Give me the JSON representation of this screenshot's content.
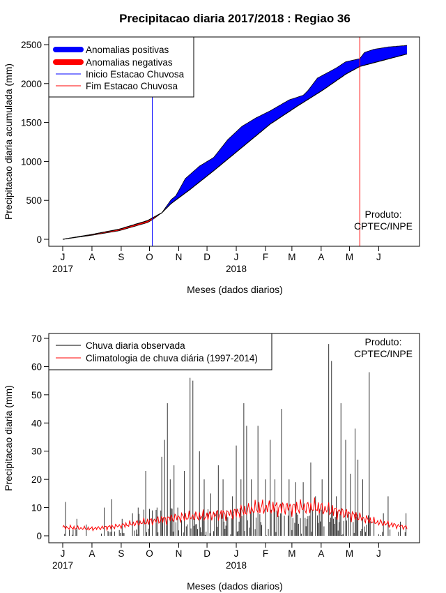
{
  "title": "Precipitacao diaria 2017/2018 : Regiao 36",
  "credit": [
    "Produto:",
    "CPTEC/INPE"
  ],
  "months": [
    "J",
    "A",
    "S",
    "O",
    "N",
    "D",
    "J",
    "F",
    "M",
    "A",
    "M",
    "J"
  ],
  "years": [
    "2017",
    "2018"
  ],
  "colors": {
    "positive": "#0000ff",
    "negative": "#ff0000",
    "onset": "#0000ff",
    "end": "#ff0000",
    "observed": "#000000",
    "climatology": "#ff0000"
  },
  "chart_data": [
    {
      "type": "area",
      "name": "accumulated",
      "title": "Precipitacao diaria 2017/2018 : Regiao 36",
      "xlabel": "Meses (dados diarios)",
      "ylabel": "Precipitacao diaria acumulada (mm)",
      "xlim": [
        0,
        365
      ],
      "ylim": [
        0,
        2500
      ],
      "yticks": [
        0,
        500,
        1000,
        1500,
        2000,
        2500
      ],
      "legend": {
        "position": "top-left",
        "entries": [
          "Anomalias positivas",
          "Anomalias negativas",
          "Inicio Estacao Chuvosa",
          "Fim Estacao Chuvosa"
        ]
      },
      "onset_day": 95,
      "end_day": 315,
      "climatology_x": [
        0,
        30,
        60,
        90,
        105,
        115,
        135,
        160,
        190,
        220,
        250,
        275,
        300,
        315,
        340,
        365
      ],
      "climatology_y": [
        0,
        60,
        130,
        240,
        340,
        460,
        640,
        880,
        1180,
        1480,
        1720,
        1910,
        2120,
        2220,
        2300,
        2380
      ],
      "observed_x": [
        0,
        30,
        60,
        90,
        95,
        105,
        115,
        120,
        130,
        145,
        160,
        175,
        190,
        205,
        220,
        240,
        255,
        260,
        270,
        290,
        300,
        315,
        320,
        330,
        345,
        365
      ],
      "observed_y": [
        0,
        50,
        110,
        215,
        250,
        340,
        510,
        560,
        780,
        940,
        1050,
        1280,
        1450,
        1560,
        1650,
        1790,
        1850,
        1910,
        2070,
        2200,
        2280,
        2320,
        2400,
        2440,
        2470,
        2490
      ]
    },
    {
      "type": "bar",
      "name": "daily",
      "xlabel": "Meses (dados diarios)",
      "ylabel": "Precipitacao diaria (mm)",
      "xlim": [
        0,
        365
      ],
      "ylim": [
        0,
        70
      ],
      "yticks": [
        0,
        10,
        20,
        30,
        40,
        50,
        60,
        70
      ],
      "legend": {
        "position": "top-left",
        "entries": [
          "Chuva diaria observada",
          "Climatologia de chuva diária (1997-2014)"
        ]
      },
      "peaks": [
        {
          "day": 3,
          "value": 12
        },
        {
          "day": 15,
          "value": 6
        },
        {
          "day": 25,
          "value": 4
        },
        {
          "day": 44,
          "value": 10
        },
        {
          "day": 52,
          "value": 13
        },
        {
          "day": 63,
          "value": 6
        },
        {
          "day": 74,
          "value": 8
        },
        {
          "day": 80,
          "value": 10
        },
        {
          "day": 88,
          "value": 23
        },
        {
          "day": 95,
          "value": 9
        },
        {
          "day": 100,
          "value": 10
        },
        {
          "day": 105,
          "value": 28
        },
        {
          "day": 108,
          "value": 34
        },
        {
          "day": 111,
          "value": 47
        },
        {
          "day": 114,
          "value": 20
        },
        {
          "day": 118,
          "value": 25
        },
        {
          "day": 122,
          "value": 10
        },
        {
          "day": 129,
          "value": 23
        },
        {
          "day": 135,
          "value": 56
        },
        {
          "day": 138,
          "value": 55
        },
        {
          "day": 145,
          "value": 30
        },
        {
          "day": 150,
          "value": 20
        },
        {
          "day": 157,
          "value": 15
        },
        {
          "day": 165,
          "value": 25
        },
        {
          "day": 170,
          "value": 20
        },
        {
          "day": 180,
          "value": 14
        },
        {
          "day": 184,
          "value": 32
        },
        {
          "day": 189,
          "value": 20
        },
        {
          "day": 192,
          "value": 47
        },
        {
          "day": 195,
          "value": 39
        },
        {
          "day": 200,
          "value": 20
        },
        {
          "day": 207,
          "value": 39
        },
        {
          "day": 215,
          "value": 20
        },
        {
          "day": 220,
          "value": 34
        },
        {
          "day": 225,
          "value": 20
        },
        {
          "day": 232,
          "value": 45
        },
        {
          "day": 240,
          "value": 20
        },
        {
          "day": 247,
          "value": 19
        },
        {
          "day": 255,
          "value": 19
        },
        {
          "day": 263,
          "value": 26
        },
        {
          "day": 268,
          "value": 14
        },
        {
          "day": 275,
          "value": 20
        },
        {
          "day": 282,
          "value": 68
        },
        {
          "day": 285,
          "value": 62
        },
        {
          "day": 290,
          "value": 14
        },
        {
          "day": 295,
          "value": 47
        },
        {
          "day": 300,
          "value": 34
        },
        {
          "day": 305,
          "value": 22
        },
        {
          "day": 310,
          "value": 38
        },
        {
          "day": 313,
          "value": 27
        },
        {
          "day": 318,
          "value": 20
        },
        {
          "day": 325,
          "value": 58
        },
        {
          "day": 330,
          "value": 5
        },
        {
          "day": 340,
          "value": 8
        },
        {
          "day": 345,
          "value": 14
        },
        {
          "day": 358,
          "value": 5
        },
        {
          "day": 364,
          "value": 8
        }
      ],
      "climatology_x": [
        0,
        30,
        60,
        90,
        120,
        150,
        180,
        210,
        240,
        270,
        300,
        330,
        365
      ],
      "climatology_y": [
        3,
        2.5,
        3.5,
        5,
        6.5,
        7,
        8,
        10,
        10,
        10,
        8,
        5,
        3
      ]
    }
  ]
}
